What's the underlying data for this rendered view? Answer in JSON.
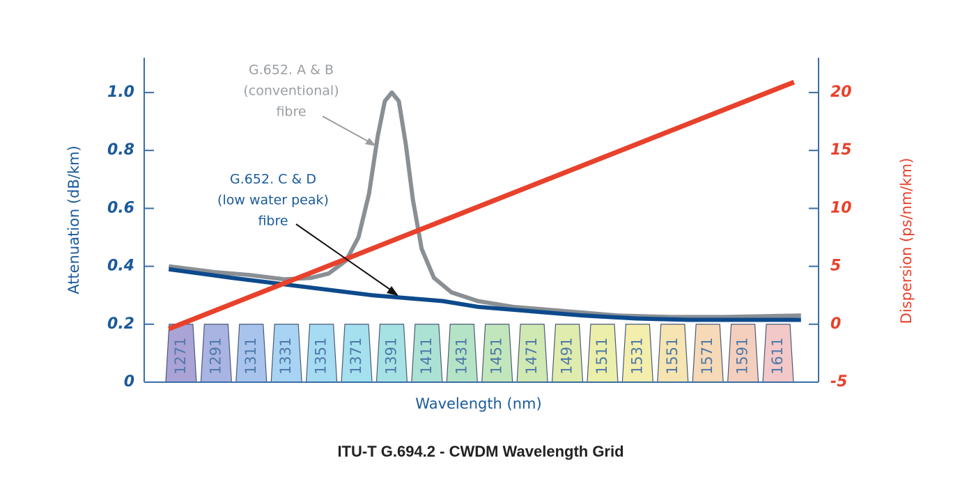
{
  "chart_data": {
    "type": "line",
    "title": "ITU-T G.694.2 - CWDM Wavelength Grid",
    "x_label": "Wavelength (nm)",
    "y_label": "Attenuation (dB/km)",
    "y2_label": "Dispersion (ps/nm/km)",
    "xlim": [
      1250,
      1634
    ],
    "ylim": [
      0,
      1.12
    ],
    "yticks": [
      0,
      0.2,
      0.4,
      0.6,
      0.8,
      {
        "value": 1,
        "label": "1.0"
      }
    ],
    "y2lim": [
      -5,
      23
    ],
    "y2ticks": [
      -5,
      0,
      5,
      10,
      15,
      20
    ],
    "channels": [
      1271,
      1291,
      1311,
      1331,
      1351,
      1371,
      1391,
      1411,
      1431,
      1451,
      1471,
      1491,
      1511,
      1531,
      1551,
      1571,
      1591,
      1611
    ],
    "channel_band": [
      0,
      0.2
    ],
    "channel_colors": [
      "#a9a3d6",
      "#a9b4e2",
      "#a8c4ec",
      "#a8d3f2",
      "#a6dcf2",
      "#a4e0ee",
      "#a6e2e4",
      "#abe2d4",
      "#b4e3c6",
      "#c1e6bb",
      "#d0e9b3",
      "#dfecad",
      "#ebefaa",
      "#f3eeac",
      "#f6e5b0",
      "#f6d9b6",
      "#f4cfbe",
      "#f2c8c8"
    ],
    "series": [
      {
        "name": "G.652. A & B",
        "color": "#8a8f94",
        "x": [
          1264,
          1290,
          1310,
          1330,
          1345,
          1355,
          1365,
          1372,
          1378,
          1383,
          1387,
          1391,
          1395,
          1399,
          1403,
          1408,
          1415,
          1425,
          1440,
          1460,
          1480,
          1500,
          1520,
          1550,
          1580,
          1624
        ],
        "values": [
          0.4,
          0.38,
          0.37,
          0.355,
          0.36,
          0.375,
          0.42,
          0.5,
          0.65,
          0.85,
          0.97,
          1.0,
          0.97,
          0.82,
          0.63,
          0.46,
          0.36,
          0.31,
          0.28,
          0.26,
          0.25,
          0.24,
          0.23,
          0.225,
          0.225,
          0.23
        ]
      },
      {
        "name": "G.652. C & D",
        "color": "#0d4a8c",
        "x": [
          1264,
          1300,
          1340,
          1380,
          1420,
          1440,
          1470,
          1500,
          1530,
          1560,
          1590,
          1624
        ],
        "values": [
          0.39,
          0.36,
          0.33,
          0.3,
          0.28,
          0.26,
          0.245,
          0.23,
          0.22,
          0.215,
          0.215,
          0.215
        ]
      },
      {
        "name": "Dispersion",
        "color": "#e8412c",
        "axis": "y2",
        "x": [
          1264,
          1620
        ],
        "values": [
          -0.4,
          20.9
        ]
      }
    ],
    "annotations": [
      {
        "lines": [
          "G.652. A & B",
          "(conventional)",
          "fibre"
        ]
      },
      {
        "lines": [
          "G.652. C & D",
          "(low water peak)",
          "fibre"
        ]
      }
    ]
  }
}
